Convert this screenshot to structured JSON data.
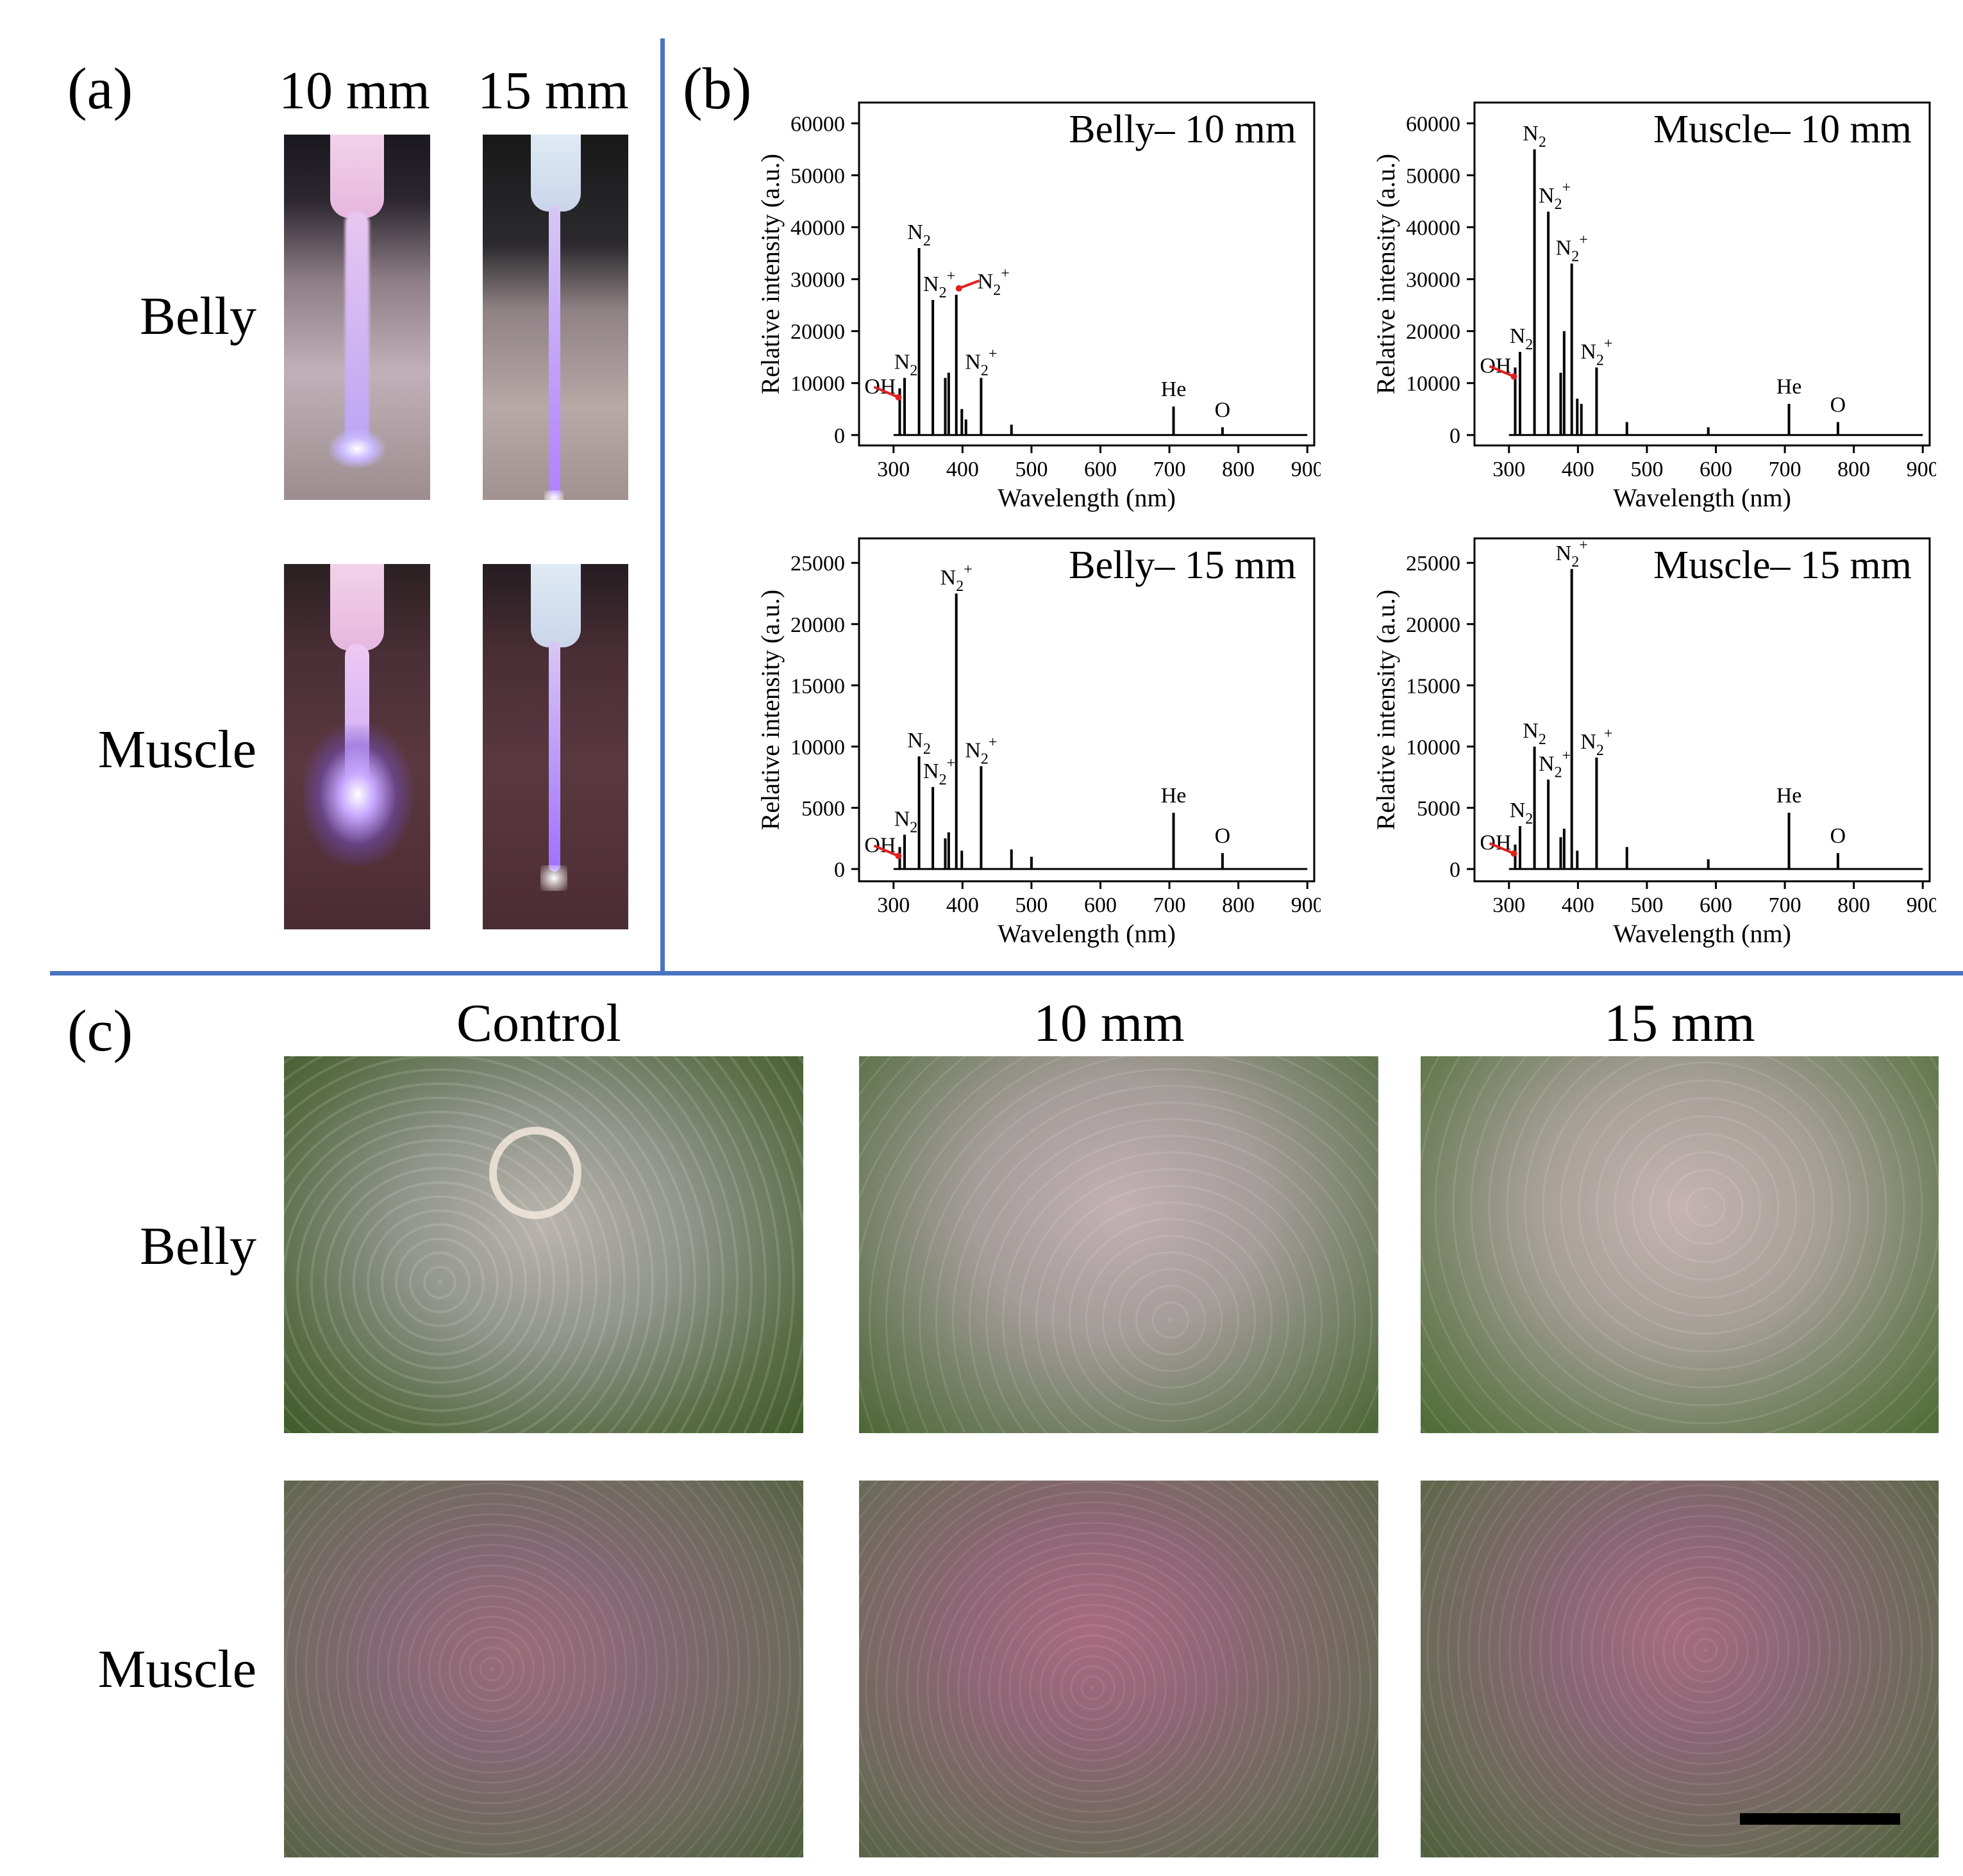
{
  "panel_a": {
    "letter": "(a)",
    "col_labels": [
      "10 mm",
      "15 mm"
    ],
    "row_labels": [
      "Belly",
      "Muscle"
    ]
  },
  "panel_b": {
    "letter": "(b)"
  },
  "panel_c": {
    "letter": "(c)",
    "col_labels": [
      "Control",
      "10 mm",
      "15 mm"
    ],
    "row_labels": [
      "Belly",
      "Muscle"
    ]
  },
  "colors": {
    "divider": "#4a74c0",
    "arrow": "#e02020",
    "line": "#000000"
  },
  "chart_data": [
    {
      "type": "line",
      "title": "Belly– 10 mm",
      "xlabel": "Wavelength (nm)",
      "ylabel": "Relative intensity (a.u.)",
      "xlim": [
        250,
        910
      ],
      "ylim": [
        -2000,
        64000
      ],
      "xticks": [
        300,
        400,
        500,
        600,
        700,
        800,
        900
      ],
      "yticks": [
        0,
        10000,
        20000,
        30000,
        40000,
        50000,
        60000
      ],
      "series": [
        {
          "x": [
            309,
            316,
            337,
            357,
            375,
            380,
            391,
            399,
            405,
            427,
            471,
            706,
            777
          ],
          "y": [
            9000,
            11000,
            36000,
            26000,
            11000,
            12000,
            27000,
            5000,
            3000,
            11000,
            2000,
            5500,
            1500
          ]
        }
      ],
      "annotations": [
        {
          "text": "OH",
          "x": 309,
          "y": 9000,
          "arrow": true
        },
        {
          "text": "N₂",
          "x": 316,
          "y": 11000
        },
        {
          "text": "N₂",
          "x": 337,
          "y": 36000
        },
        {
          "text": "N₂⁺",
          "x": 357,
          "y": 26000
        },
        {
          "text": "N₂⁺",
          "x": 391,
          "y": 27000,
          "arrow": true
        },
        {
          "text": "N₂⁺",
          "x": 427,
          "y": 11000
        },
        {
          "text": "He",
          "x": 706,
          "y": 5500
        },
        {
          "text": "O",
          "x": 777,
          "y": 1500
        }
      ]
    },
    {
      "type": "line",
      "title": "Muscle– 10 mm",
      "xlabel": "Wavelength (nm)",
      "ylabel": "Relative intensity (a.u.)",
      "xlim": [
        250,
        910
      ],
      "ylim": [
        -2000,
        64000
      ],
      "xticks": [
        300,
        400,
        500,
        600,
        700,
        800,
        900
      ],
      "yticks": [
        0,
        10000,
        20000,
        30000,
        40000,
        50000,
        60000
      ],
      "series": [
        {
          "x": [
            309,
            316,
            337,
            357,
            375,
            380,
            391,
            399,
            405,
            427,
            471,
            589,
            706,
            777
          ],
          "y": [
            13000,
            16000,
            55000,
            43000,
            12000,
            20000,
            33000,
            7000,
            6000,
            13000,
            2500,
            1500,
            6000,
            2500
          ]
        }
      ],
      "annotations": [
        {
          "text": "OH",
          "x": 309,
          "y": 13000,
          "arrow": true
        },
        {
          "text": "N₂",
          "x": 316,
          "y": 16000
        },
        {
          "text": "N₂",
          "x": 337,
          "y": 55000
        },
        {
          "text": "N₂⁺",
          "x": 357,
          "y": 43000
        },
        {
          "text": "N₂⁺",
          "x": 391,
          "y": 33000
        },
        {
          "text": "N₂⁺",
          "x": 427,
          "y": 13000
        },
        {
          "text": "He",
          "x": 706,
          "y": 6000
        },
        {
          "text": "O",
          "x": 777,
          "y": 2500
        }
      ]
    },
    {
      "type": "line",
      "title": "Belly– 15 mm",
      "xlabel": "Wavelength (nm)",
      "ylabel": "Relative intensity (a.u.)",
      "xlim": [
        250,
        910
      ],
      "ylim": [
        -1000,
        27000
      ],
      "xticks": [
        300,
        400,
        500,
        600,
        700,
        800,
        900
      ],
      "yticks": [
        0,
        5000,
        10000,
        15000,
        20000,
        25000
      ],
      "series": [
        {
          "x": [
            309,
            316,
            337,
            357,
            375,
            380,
            391,
            399,
            427,
            471,
            500,
            706,
            777
          ],
          "y": [
            1800,
            2800,
            9200,
            6700,
            2500,
            3000,
            22500,
            1500,
            8400,
            1600,
            1000,
            4600,
            1300
          ]
        }
      ],
      "annotations": [
        {
          "text": "OH",
          "x": 309,
          "y": 1800,
          "arrow": true
        },
        {
          "text": "N₂",
          "x": 316,
          "y": 2800
        },
        {
          "text": "N₂",
          "x": 337,
          "y": 9200
        },
        {
          "text": "N₂⁺",
          "x": 357,
          "y": 6700
        },
        {
          "text": "N₂⁺",
          "x": 391,
          "y": 22500
        },
        {
          "text": "N₂⁺",
          "x": 427,
          "y": 8400
        },
        {
          "text": "He",
          "x": 706,
          "y": 4600
        },
        {
          "text": "O",
          "x": 777,
          "y": 1300
        }
      ]
    },
    {
      "type": "line",
      "title": "Muscle– 15 mm",
      "xlabel": "Wavelength (nm)",
      "ylabel": "Relative intensity (a.u.)",
      "xlim": [
        250,
        910
      ],
      "ylim": [
        -1000,
        27000
      ],
      "xticks": [
        300,
        400,
        500,
        600,
        700,
        800,
        900
      ],
      "yticks": [
        0,
        5000,
        10000,
        15000,
        20000,
        25000
      ],
      "series": [
        {
          "x": [
            309,
            316,
            337,
            357,
            375,
            380,
            391,
            399,
            427,
            471,
            589,
            706,
            777
          ],
          "y": [
            2000,
            3500,
            10000,
            7300,
            2600,
            3300,
            24500,
            1500,
            9100,
            1800,
            800,
            4600,
            1300
          ]
        }
      ],
      "annotations": [
        {
          "text": "OH",
          "x": 309,
          "y": 2000,
          "arrow": true
        },
        {
          "text": "N₂",
          "x": 316,
          "y": 3500
        },
        {
          "text": "N₂",
          "x": 337,
          "y": 10000
        },
        {
          "text": "N₂⁺",
          "x": 357,
          "y": 7300
        },
        {
          "text": "N₂⁺",
          "x": 391,
          "y": 24500
        },
        {
          "text": "N₂⁺",
          "x": 427,
          "y": 9100
        },
        {
          "text": "He",
          "x": 706,
          "y": 4600
        },
        {
          "text": "O",
          "x": 777,
          "y": 1300
        }
      ]
    }
  ]
}
